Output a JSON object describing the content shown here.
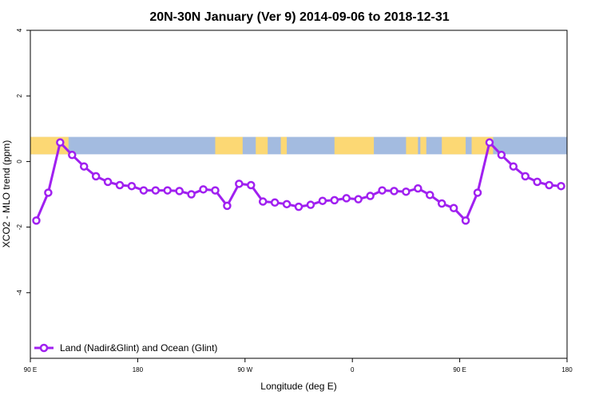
{
  "chart_data": {
    "type": "line",
    "title": "20N-30N January (Ver 9)   2014-09-06 to 2018-12-31",
    "xlabel": "Longitude (deg E)",
    "ylabel": "XCO2 - MLO trend (ppm)",
    "xlim": [
      90,
      540
    ],
    "ylim": [
      -6,
      4
    ],
    "xticks": [
      {
        "value": 90,
        "label": "90 E"
      },
      {
        "value": 180,
        "label": "180"
      },
      {
        "value": 270,
        "label": "90 W"
      },
      {
        "value": 360,
        "label": "0"
      },
      {
        "value": 450,
        "label": "90 E"
      },
      {
        "value": 540,
        "label": "180"
      }
    ],
    "yticks": [
      {
        "value": -4,
        "label": "-4"
      },
      {
        "value": -2,
        "label": "-2"
      },
      {
        "value": 0,
        "label": "0"
      },
      {
        "value": 2,
        "label": "2"
      },
      {
        "value": 4,
        "label": "4"
      }
    ],
    "grid": false,
    "legend": {
      "placement": "bottom-left"
    },
    "colors": {
      "series": "#a020f0",
      "ocean": "#a3bbe0",
      "land": "#fcd874"
    },
    "series": [
      {
        "name": "Land (Nadir&Glint) and Ocean (Glint)",
        "x": [
          95,
          105,
          115,
          125,
          135,
          145,
          155,
          165,
          175,
          185,
          195,
          205,
          215,
          225,
          235,
          245,
          255,
          265,
          275,
          285,
          295,
          305,
          315,
          325,
          335,
          345,
          355,
          365,
          375,
          385,
          395,
          405,
          415,
          425,
          435,
          445,
          455,
          465,
          475,
          485,
          495,
          505,
          515,
          525,
          535
        ],
        "y": [
          -1.8,
          -0.95,
          0.58,
          0.2,
          -0.15,
          -0.45,
          -0.62,
          -0.72,
          -0.75,
          -0.88,
          -0.88,
          -0.88,
          -0.9,
          -1.0,
          -0.85,
          -0.88,
          -1.35,
          -0.68,
          -0.72,
          -1.22,
          -1.25,
          -1.3,
          -1.38,
          -1.32,
          -1.2,
          -1.18,
          -1.12,
          -1.15,
          -1.05,
          -0.88,
          -0.9,
          -0.92,
          -0.82,
          -1.02,
          -1.28,
          -1.42,
          -1.8,
          -0.95,
          0.58,
          0.2,
          -0.15,
          -0.45,
          -0.62,
          -0.72,
          -0.75
        ]
      }
    ],
    "map_strip": {
      "y_range": [
        0.22,
        0.75
      ],
      "land_spans": [
        [
          90,
          122
        ],
        [
          245,
          268
        ],
        [
          279,
          289
        ],
        [
          300,
          305
        ],
        [
          345,
          378
        ],
        [
          405,
          415
        ],
        [
          417,
          422
        ],
        [
          435,
          455
        ],
        [
          460,
          478
        ]
      ]
    }
  }
}
